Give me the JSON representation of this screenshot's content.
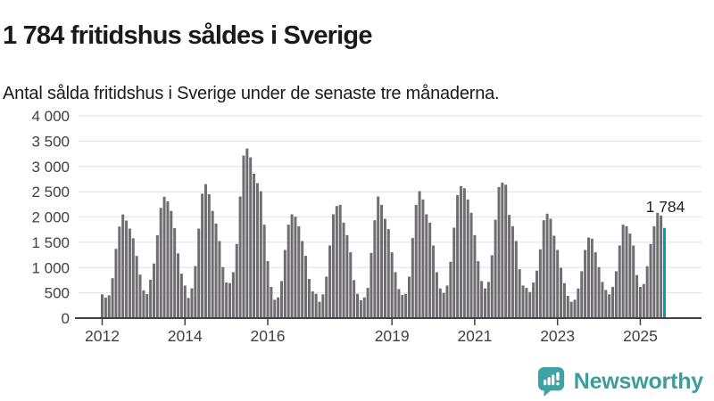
{
  "header": {
    "title": "1 784 fritidshus såldes i Sverige",
    "subtitle": "Antal sålda fritidshus i Sverige under de senaste tre månaderna."
  },
  "chart_data": {
    "type": "bar",
    "title": "1 784 fritidshus såldes i Sverige",
    "subtitle": "Antal sålda fritidshus i Sverige under de senaste tre månaderna.",
    "ylabel": "",
    "xlabel": "",
    "ylim": [
      0,
      4000
    ],
    "grid": true,
    "bar_color": "#6f6d71",
    "highlight_color": "#00a3a3",
    "axis_color": "#414141",
    "grid_color": "#e6e6e6",
    "label_color": "#414141",
    "annotation": {
      "label": "1 784",
      "value": 1784
    },
    "y_ticks": [
      "0",
      "500",
      "1 000",
      "1 500",
      "2 000",
      "2 500",
      "3 000",
      "3 500",
      "4 000"
    ],
    "x_ticks": [
      {
        "label": "2012",
        "index": 0
      },
      {
        "label": "2014",
        "index": 24
      },
      {
        "label": "2016",
        "index": 48
      },
      {
        "label": "2019",
        "index": 84
      },
      {
        "label": "2021",
        "index": 108
      },
      {
        "label": "2023",
        "index": 132
      },
      {
        "label": "2025",
        "index": 156
      }
    ],
    "series_start": "2012",
    "values": [
      470,
      405,
      450,
      790,
      1370,
      1810,
      2050,
      1930,
      1770,
      1580,
      1230,
      860,
      550,
      475,
      760,
      1080,
      1640,
      2180,
      2400,
      2310,
      2120,
      1780,
      1280,
      880,
      645,
      400,
      590,
      1030,
      1770,
      2460,
      2650,
      2450,
      2120,
      1870,
      1525,
      1010,
      704,
      692,
      909,
      1467,
      2405,
      3215,
      3355,
      3180,
      2857,
      2670,
      2510,
      1848,
      1126,
      616,
      364,
      410,
      733,
      1349,
      1848,
      2053,
      2006,
      1818,
      1525,
      1232,
      774,
      528,
      481,
      323,
      469,
      821,
      1437,
      2053,
      2217,
      2240,
      1889,
      1642,
      1302,
      751,
      481,
      352,
      410,
      598,
      1290,
      1936,
      2405,
      2240,
      1965,
      1760,
      1302,
      909,
      575,
      457,
      481,
      821,
      1584,
      2240,
      2511,
      2346,
      2053,
      1889,
      1437,
      909,
      587,
      499,
      645,
      1114,
      1789,
      2434,
      2610,
      2570,
      2346,
      2082,
      1642,
      1126,
      733,
      587,
      716,
      1243,
      1947,
      2593,
      2680,
      2640,
      2041,
      1818,
      1525,
      968,
      645,
      598,
      516,
      704,
      939,
      1361,
      1936,
      2065,
      1965,
      1630,
      1349,
      997,
      692,
      440,
      323,
      364,
      587,
      927,
      1349,
      1595,
      1572,
      1302,
      1009,
      716,
      557,
      469,
      616,
      927,
      1437,
      1848,
      1818,
      1672,
      1437,
      851,
      616,
      674,
      1026,
      1466,
      1818,
      2082,
      2030,
      1784
    ],
    "highlight_last": true
  },
  "footer": {
    "brand": "Newsworthy",
    "brand_color": "#3d9c9c",
    "logo_color": "#3fa3a3"
  },
  "icons": {
    "logo": "newsworthy-chart-speech-bubble-icon"
  }
}
